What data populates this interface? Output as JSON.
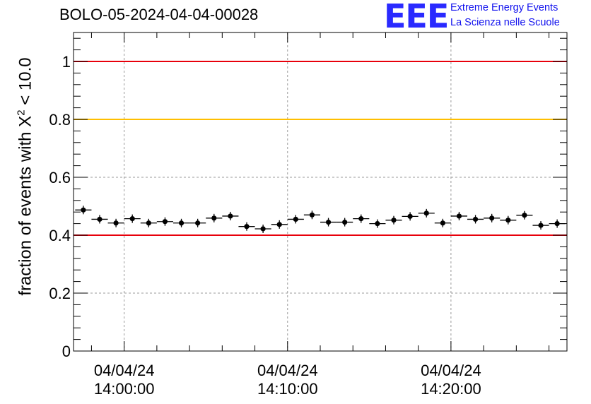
{
  "header": {
    "title": "BOLO-05-2024-04-04-00028",
    "logo_mark": "EEE",
    "logo_line1": "Extreme Energy Events",
    "logo_line2": "La Scienza nelle Scuole"
  },
  "chart_data": {
    "type": "scatter",
    "title": "BOLO-05-2024-04-04-00028",
    "ylabel_main": "fraction of events with Χ",
    "ylabel_sup": "2",
    "ylabel_tail": " < 10.0",
    "xlabel": "",
    "ylim": [
      0,
      1.1
    ],
    "grid": true,
    "x_ticks": [
      {
        "date": "04/04/24",
        "time": "14:00:00",
        "minute": 0
      },
      {
        "date": "04/04/24",
        "time": "14:10:00",
        "minute": 10
      },
      {
        "date": "04/04/24",
        "time": "14:20:00",
        "minute": 20
      }
    ],
    "y_ticks": [
      "0",
      "0.2",
      "0.4",
      "0.6",
      "0.8",
      "1"
    ],
    "x_range_minutes": [
      -3.1,
      27.1
    ],
    "bin_width_minutes": 1,
    "points_x_minutes": [
      -2.5,
      -1.5,
      -0.5,
      0.5,
      1.5,
      2.5,
      3.5,
      4.5,
      5.5,
      6.5,
      7.5,
      8.5,
      9.5,
      10.5,
      11.5,
      12.5,
      13.5,
      14.5,
      15.5,
      16.5,
      17.5,
      18.5,
      19.5,
      20.5,
      21.5,
      22.5,
      23.5,
      24.5,
      25.5,
      26.5
    ],
    "values": [
      0.487,
      0.455,
      0.442,
      0.457,
      0.442,
      0.447,
      0.442,
      0.442,
      0.459,
      0.466,
      0.43,
      0.422,
      0.437,
      0.455,
      0.47,
      0.445,
      0.445,
      0.457,
      0.44,
      0.452,
      0.465,
      0.476,
      0.442,
      0.466,
      0.455,
      0.459,
      0.452,
      0.469,
      0.434,
      0.44
    ],
    "reference_lines": [
      {
        "y": 1.0,
        "color": "#e8000b"
      },
      {
        "y": 0.8,
        "color": "#ffbf00"
      },
      {
        "y": 0.4,
        "color": "#e8000b"
      }
    ]
  }
}
